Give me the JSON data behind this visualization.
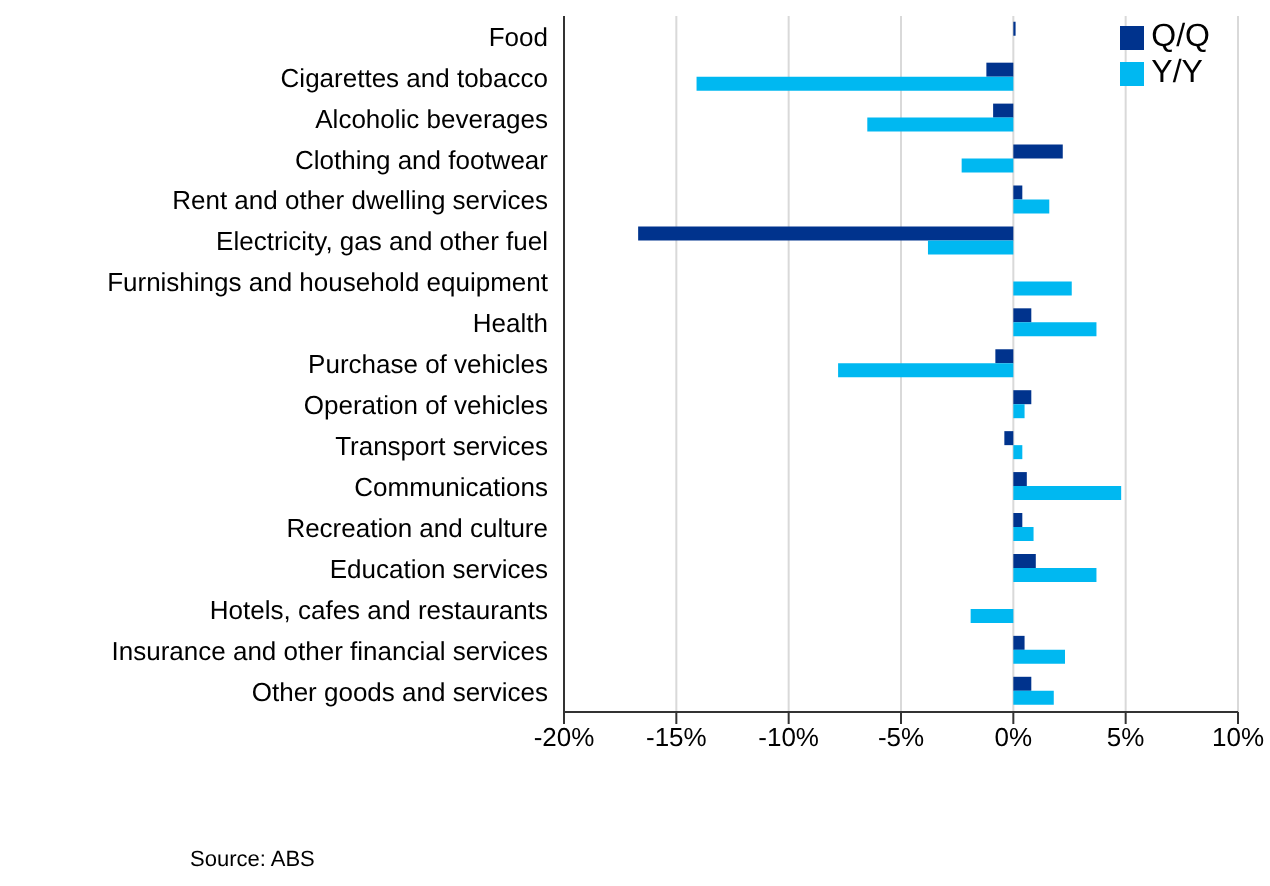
{
  "chart_data": {
    "type": "bar",
    "orientation": "horizontal",
    "categories": [
      "Food",
      "Cigarettes and tobacco",
      "Alcoholic beverages",
      "Clothing and footwear",
      "Rent and other dwelling services",
      "Electricity, gas and other fuel",
      "Furnishings and household equipment",
      "Health",
      "Purchase of vehicles",
      "Operation of vehicles",
      "Transport services",
      "Communications",
      "Recreation and culture",
      "Education services",
      "Hotels, cafes and restaurants",
      "Insurance and other financial services",
      "Other goods and services"
    ],
    "series": [
      {
        "name": "Q/Q",
        "color": "#00338d",
        "values": [
          0.1,
          -1.2,
          -0.9,
          2.2,
          0.4,
          -16.7,
          0,
          0.8,
          -0.8,
          0.8,
          -0.4,
          0.6,
          0.4,
          1.0,
          0,
          0.5,
          0.8
        ]
      },
      {
        "name": "Y/Y",
        "color": "#00b8f1",
        "values": [
          0,
          -14.1,
          -6.5,
          -2.3,
          1.6,
          -3.8,
          2.6,
          3.7,
          -7.8,
          0.5,
          0.4,
          4.8,
          0.9,
          3.7,
          -1.9,
          2.3,
          1.8
        ]
      }
    ],
    "xlim": [
      -20,
      10
    ],
    "xticks": [
      {
        "value": -20,
        "label": "-20%"
      },
      {
        "value": -15,
        "label": "-15%"
      },
      {
        "value": -10,
        "label": "-10%"
      },
      {
        "value": -5,
        "label": "-5%"
      },
      {
        "value": 0,
        "label": "0%"
      },
      {
        "value": 5,
        "label": "5%"
      },
      {
        "value": 10,
        "label": "10%"
      }
    ],
    "grid": "x",
    "legend": "top right",
    "annotations": [
      "Source: ABS"
    ]
  }
}
